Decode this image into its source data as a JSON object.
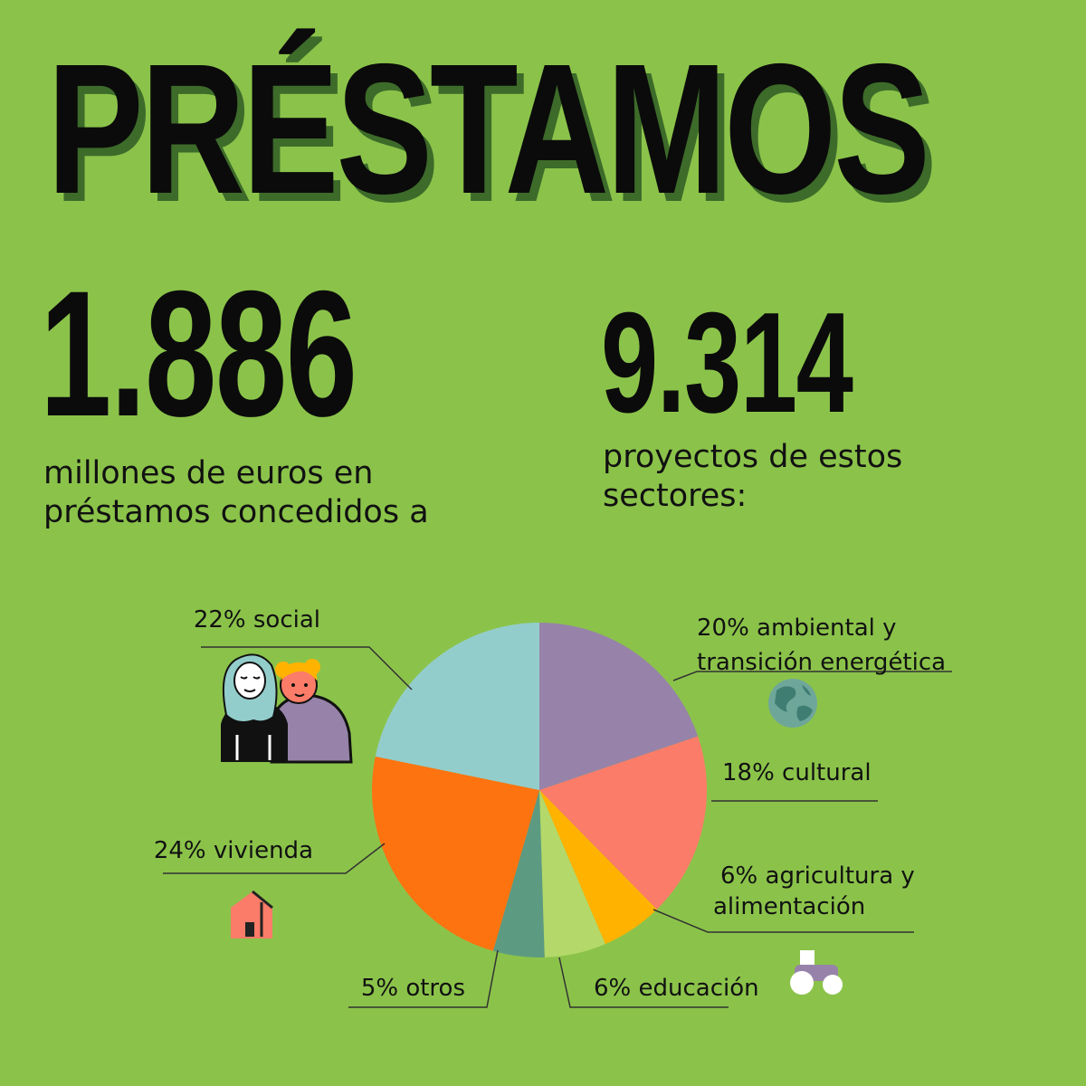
{
  "header": {
    "title": "PRÉSTAMOS"
  },
  "stats": {
    "amount": "1.886",
    "amount_caption_line1": "millones de euros en",
    "amount_caption_line2": "préstamos concedidos a",
    "projects": "9.314",
    "projects_caption_line1": "proyectos de estos",
    "projects_caption_line2": "sectores:"
  },
  "chart_data": {
    "type": "pie",
    "title": "",
    "slices": [
      {
        "label_line1": "20% ambiental y",
        "label_line2": "transición energética",
        "value": 20,
        "color": "#9783a9"
      },
      {
        "label_line1": "18% cultural",
        "label_line2": "",
        "value": 18,
        "color": "#fb7c68"
      },
      {
        "label_line1": "6% agricultura y",
        "label_line2": "alimentación",
        "value": 6,
        "color": "#ffb300"
      },
      {
        "label_line1": "6% educación",
        "label_line2": "",
        "value": 6,
        "color": "#b4d96a"
      },
      {
        "label_line1": "5% otros",
        "label_line2": "",
        "value": 5,
        "color": "#5c9a82"
      },
      {
        "label_line1": "24% vivienda",
        "label_line2": "",
        "value": 24,
        "color": "#fd7310"
      },
      {
        "label_line1": "22% social",
        "label_line2": "",
        "value": 22,
        "color": "#93cdcb"
      }
    ],
    "start_angle_deg": 0,
    "direction": "clockwise"
  },
  "icons": {
    "environment": "globe-icon",
    "culture": "",
    "agriculture": "tractor-icon",
    "housing": "house-icon",
    "social": "people-illustration"
  }
}
